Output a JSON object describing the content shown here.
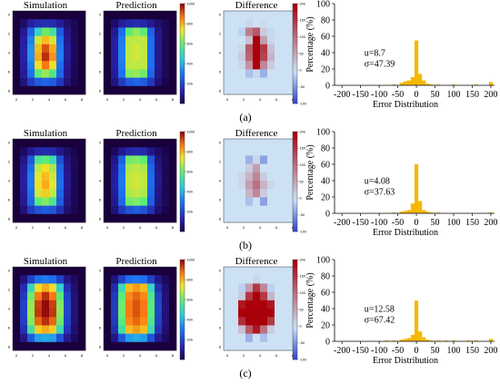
{
  "labels": {
    "simulation": "Simulation",
    "prediction": "Prediction",
    "difference": "Difference",
    "hist_ylabel": "Percentage (%)",
    "hist_xlabel": "Error Distribution"
  },
  "map_ticks": [
    "0",
    "2",
    "4",
    "6",
    "8"
  ],
  "colorbars": {
    "value": {
      "min": 0,
      "max": 1000,
      "ticks": [
        "1000",
        "800",
        "600",
        "400",
        "200"
      ]
    },
    "diff": {
      "min": -100,
      "max": 200,
      "ticks": [
        "200",
        "150",
        "100",
        "50",
        "0",
        "-50",
        "-100"
      ]
    }
  },
  "hist_axes": {
    "xlim": [
      -220,
      210
    ],
    "ylim": [
      0,
      100
    ],
    "x_ticks": [
      "-200",
      "-150",
      "-100",
      "-50",
      "0",
      "50",
      "100",
      "150",
      "200"
    ],
    "y_ticks": [
      "0",
      "20",
      "40",
      "60",
      "80",
      "100"
    ]
  },
  "colors": {
    "bar": "#f5b800",
    "frame": "#000000"
  },
  "panels": [
    {
      "label": "(a)",
      "stats": {
        "mu": "u=8.7",
        "sigma": "σ=47.39"
      },
      "simulation": [
        [
          0,
          0,
          0,
          0,
          0,
          0,
          0,
          0,
          0,
          0
        ],
        [
          0,
          50,
          120,
          150,
          160,
          150,
          110,
          60,
          30,
          0
        ],
        [
          0,
          100,
          280,
          500,
          620,
          550,
          260,
          90,
          30,
          0
        ],
        [
          0,
          120,
          330,
          720,
          800,
          720,
          300,
          100,
          30,
          0
        ],
        [
          0,
          130,
          360,
          800,
          920,
          820,
          320,
          110,
          40,
          0
        ],
        [
          0,
          130,
          360,
          820,
          960,
          850,
          330,
          110,
          40,
          0
        ],
        [
          0,
          120,
          330,
          760,
          880,
          760,
          300,
          100,
          30,
          0
        ],
        [
          0,
          110,
          300,
          600,
          660,
          580,
          280,
          90,
          30,
          0
        ],
        [
          0,
          80,
          190,
          260,
          280,
          260,
          180,
          70,
          20,
          0
        ],
        [
          0,
          0,
          0,
          0,
          0,
          0,
          0,
          0,
          0,
          0
        ]
      ],
      "prediction": [
        [
          0,
          0,
          0,
          0,
          0,
          0,
          0,
          0,
          0,
          0
        ],
        [
          0,
          50,
          110,
          140,
          150,
          140,
          100,
          60,
          30,
          0
        ],
        [
          0,
          100,
          290,
          600,
          660,
          600,
          270,
          90,
          30,
          0
        ],
        [
          0,
          120,
          320,
          700,
          700,
          700,
          300,
          100,
          30,
          0
        ],
        [
          0,
          120,
          330,
          700,
          720,
          700,
          300,
          100,
          30,
          0
        ],
        [
          0,
          120,
          330,
          700,
          720,
          700,
          300,
          100,
          30,
          0
        ],
        [
          0,
          120,
          320,
          700,
          700,
          700,
          300,
          100,
          30,
          0
        ],
        [
          0,
          110,
          300,
          640,
          660,
          620,
          280,
          90,
          30,
          0
        ],
        [
          0,
          80,
          190,
          260,
          280,
          260,
          180,
          70,
          20,
          0
        ],
        [
          0,
          0,
          0,
          0,
          0,
          0,
          0,
          0,
          0,
          0
        ]
      ],
      "difference": [
        [
          0,
          0,
          0,
          0,
          0,
          0,
          0,
          0,
          0,
          0
        ],
        [
          0,
          0,
          0,
          10,
          0,
          5,
          0,
          0,
          0,
          0
        ],
        [
          0,
          0,
          -10,
          90,
          120,
          20,
          -5,
          0,
          0,
          0
        ],
        [
          0,
          0,
          0,
          30,
          200,
          60,
          10,
          0,
          0,
          0
        ],
        [
          0,
          0,
          10,
          120,
          220,
          150,
          30,
          0,
          0,
          0
        ],
        [
          0,
          0,
          20,
          110,
          200,
          140,
          40,
          0,
          0,
          0
        ],
        [
          0,
          0,
          10,
          70,
          200,
          80,
          20,
          0,
          0,
          0
        ],
        [
          0,
          0,
          0,
          -20,
          10,
          -30,
          0,
          0,
          0,
          0
        ],
        [
          0,
          0,
          0,
          0,
          0,
          0,
          0,
          0,
          0,
          0
        ],
        [
          0,
          0,
          0,
          0,
          0,
          0,
          0,
          0,
          0,
          0
        ]
      ],
      "histogram": {
        "type": "bar",
        "x": [
          -200,
          -180,
          -160,
          -140,
          -120,
          -100,
          -80,
          -60,
          -40,
          -30,
          -20,
          -10,
          0,
          10,
          20,
          30,
          40,
          60,
          80,
          100,
          120,
          140,
          160,
          180,
          200
        ],
        "values": [
          0,
          0,
          0,
          0,
          0,
          0,
          0,
          1,
          3,
          5,
          6,
          10,
          55,
          14,
          6,
          2,
          1,
          1,
          0,
          1,
          0,
          0,
          1,
          0,
          4
        ]
      }
    },
    {
      "label": "(b)",
      "stats": {
        "mu": "u=4.08",
        "sigma": "σ=37.63"
      },
      "simulation": [
        [
          0,
          0,
          0,
          0,
          0,
          0,
          0,
          0,
          0,
          0
        ],
        [
          0,
          40,
          100,
          140,
          150,
          140,
          90,
          50,
          20,
          0
        ],
        [
          0,
          90,
          250,
          560,
          600,
          520,
          230,
          80,
          30,
          0
        ],
        [
          0,
          110,
          300,
          700,
          760,
          680,
          280,
          90,
          30,
          0
        ],
        [
          0,
          120,
          320,
          740,
          800,
          720,
          290,
          100,
          30,
          0
        ],
        [
          0,
          120,
          320,
          760,
          820,
          740,
          300,
          100,
          30,
          0
        ],
        [
          0,
          110,
          300,
          720,
          780,
          700,
          280,
          90,
          30,
          0
        ],
        [
          0,
          100,
          280,
          600,
          640,
          560,
          260,
          80,
          30,
          0
        ],
        [
          0,
          70,
          180,
          240,
          260,
          240,
          160,
          60,
          20,
          0
        ],
        [
          0,
          0,
          0,
          0,
          0,
          0,
          0,
          0,
          0,
          0
        ]
      ],
      "prediction": [
        [
          0,
          0,
          0,
          0,
          0,
          0,
          0,
          0,
          0,
          0
        ],
        [
          0,
          40,
          100,
          140,
          150,
          140,
          90,
          50,
          20,
          0
        ],
        [
          0,
          90,
          260,
          620,
          640,
          600,
          240,
          80,
          30,
          0
        ],
        [
          0,
          110,
          300,
          680,
          700,
          680,
          280,
          90,
          30,
          0
        ],
        [
          0,
          120,
          310,
          700,
          720,
          700,
          290,
          100,
          30,
          0
        ],
        [
          0,
          120,
          310,
          700,
          720,
          700,
          290,
          100,
          30,
          0
        ],
        [
          0,
          110,
          300,
          680,
          700,
          680,
          280,
          90,
          30,
          0
        ],
        [
          0,
          100,
          280,
          620,
          640,
          600,
          260,
          80,
          30,
          0
        ],
        [
          0,
          70,
          180,
          240,
          260,
          240,
          160,
          60,
          20,
          0
        ],
        [
          0,
          0,
          0,
          0,
          0,
          0,
          0,
          0,
          0,
          0
        ]
      ],
      "difference": [
        [
          0,
          0,
          0,
          0,
          0,
          0,
          0,
          0,
          0,
          0
        ],
        [
          0,
          0,
          0,
          0,
          0,
          0,
          0,
          0,
          0,
          0
        ],
        [
          0,
          0,
          0,
          -30,
          10,
          -40,
          0,
          0,
          0,
          0
        ],
        [
          0,
          0,
          0,
          20,
          60,
          0,
          0,
          0,
          0,
          0
        ],
        [
          0,
          0,
          10,
          40,
          80,
          20,
          0,
          0,
          0,
          0
        ],
        [
          0,
          0,
          10,
          60,
          100,
          40,
          10,
          0,
          0,
          0
        ],
        [
          0,
          0,
          0,
          40,
          80,
          20,
          0,
          0,
          0,
          0
        ],
        [
          0,
          0,
          0,
          -20,
          0,
          -40,
          0,
          0,
          0,
          0
        ],
        [
          0,
          0,
          0,
          0,
          0,
          0,
          0,
          0,
          0,
          0
        ],
        [
          0,
          0,
          0,
          0,
          0,
          0,
          0,
          0,
          0,
          0
        ]
      ],
      "histogram": {
        "type": "bar",
        "x": [
          -200,
          -180,
          -160,
          -140,
          -120,
          -100,
          -80,
          -60,
          -40,
          -30,
          -20,
          -10,
          0,
          10,
          20,
          30,
          40,
          60,
          80,
          100,
          120,
          140,
          160,
          180,
          200
        ],
        "values": [
          0,
          0,
          0,
          0,
          0,
          0,
          0,
          1,
          2,
          3,
          4,
          12,
          60,
          15,
          4,
          2,
          1,
          1,
          0,
          0,
          0,
          0,
          0,
          0,
          1
        ]
      }
    },
    {
      "label": "(c)",
      "stats": {
        "mu": "u=12.58",
        "sigma": "σ=67.42"
      },
      "simulation": [
        [
          0,
          0,
          0,
          0,
          0,
          0,
          0,
          0,
          0,
          0
        ],
        [
          0,
          80,
          200,
          300,
          320,
          300,
          200,
          90,
          40,
          0
        ],
        [
          0,
          150,
          500,
          760,
          820,
          760,
          480,
          160,
          60,
          0
        ],
        [
          0,
          180,
          620,
          880,
          960,
          880,
          600,
          200,
          70,
          0
        ],
        [
          0,
          200,
          660,
          940,
          1000,
          940,
          640,
          210,
          70,
          0
        ],
        [
          0,
          200,
          660,
          950,
          1000,
          950,
          650,
          210,
          70,
          0
        ],
        [
          0,
          190,
          640,
          900,
          960,
          900,
          620,
          200,
          70,
          0
        ],
        [
          0,
          160,
          540,
          780,
          820,
          780,
          520,
          170,
          60,
          0
        ],
        [
          0,
          90,
          250,
          380,
          400,
          380,
          240,
          100,
          40,
          0
        ],
        [
          0,
          0,
          0,
          0,
          0,
          0,
          0,
          0,
          0,
          0
        ]
      ],
      "prediction": [
        [
          0,
          0,
          0,
          0,
          0,
          0,
          0,
          0,
          0,
          0
        ],
        [
          0,
          80,
          200,
          300,
          320,
          300,
          200,
          90,
          40,
          0
        ],
        [
          0,
          150,
          520,
          800,
          840,
          800,
          500,
          160,
          60,
          0
        ],
        [
          0,
          180,
          600,
          860,
          900,
          860,
          580,
          200,
          70,
          0
        ],
        [
          0,
          190,
          620,
          880,
          920,
          880,
          600,
          210,
          70,
          0
        ],
        [
          0,
          190,
          620,
          880,
          920,
          880,
          600,
          210,
          70,
          0
        ],
        [
          0,
          180,
          600,
          860,
          900,
          860,
          580,
          200,
          70,
          0
        ],
        [
          0,
          160,
          540,
          800,
          840,
          800,
          520,
          170,
          60,
          0
        ],
        [
          0,
          90,
          250,
          380,
          400,
          380,
          240,
          100,
          40,
          0
        ],
        [
          0,
          0,
          0,
          0,
          0,
          0,
          0,
          0,
          0,
          0
        ]
      ],
      "difference": [
        [
          0,
          0,
          0,
          0,
          0,
          0,
          0,
          0,
          0,
          0
        ],
        [
          0,
          0,
          0,
          0,
          10,
          0,
          0,
          0,
          0,
          0
        ],
        [
          0,
          0,
          -10,
          60,
          150,
          80,
          -10,
          0,
          0,
          0
        ],
        [
          0,
          0,
          20,
          150,
          200,
          150,
          40,
          0,
          0,
          0
        ],
        [
          0,
          0,
          180,
          200,
          200,
          200,
          180,
          0,
          0,
          0
        ],
        [
          0,
          0,
          200,
          200,
          200,
          200,
          200,
          0,
          0,
          0
        ],
        [
          0,
          0,
          160,
          200,
          220,
          200,
          150,
          0,
          0,
          0
        ],
        [
          0,
          0,
          30,
          120,
          180,
          100,
          20,
          0,
          0,
          0
        ],
        [
          0,
          0,
          0,
          -30,
          0,
          -20,
          0,
          0,
          0,
          0
        ],
        [
          0,
          0,
          0,
          0,
          0,
          0,
          0,
          0,
          0,
          0
        ]
      ],
      "histogram": {
        "type": "bar",
        "x": [
          -200,
          -180,
          -160,
          -140,
          -120,
          -100,
          -80,
          -60,
          -40,
          -30,
          -20,
          -10,
          0,
          10,
          20,
          30,
          40,
          60,
          80,
          100,
          120,
          140,
          160,
          180,
          200
        ],
        "values": [
          0,
          0,
          0,
          0,
          0,
          0,
          1,
          1,
          2,
          3,
          4,
          8,
          50,
          12,
          5,
          2,
          1,
          1,
          1,
          1,
          0,
          1,
          1,
          0,
          3
        ]
      }
    }
  ]
}
